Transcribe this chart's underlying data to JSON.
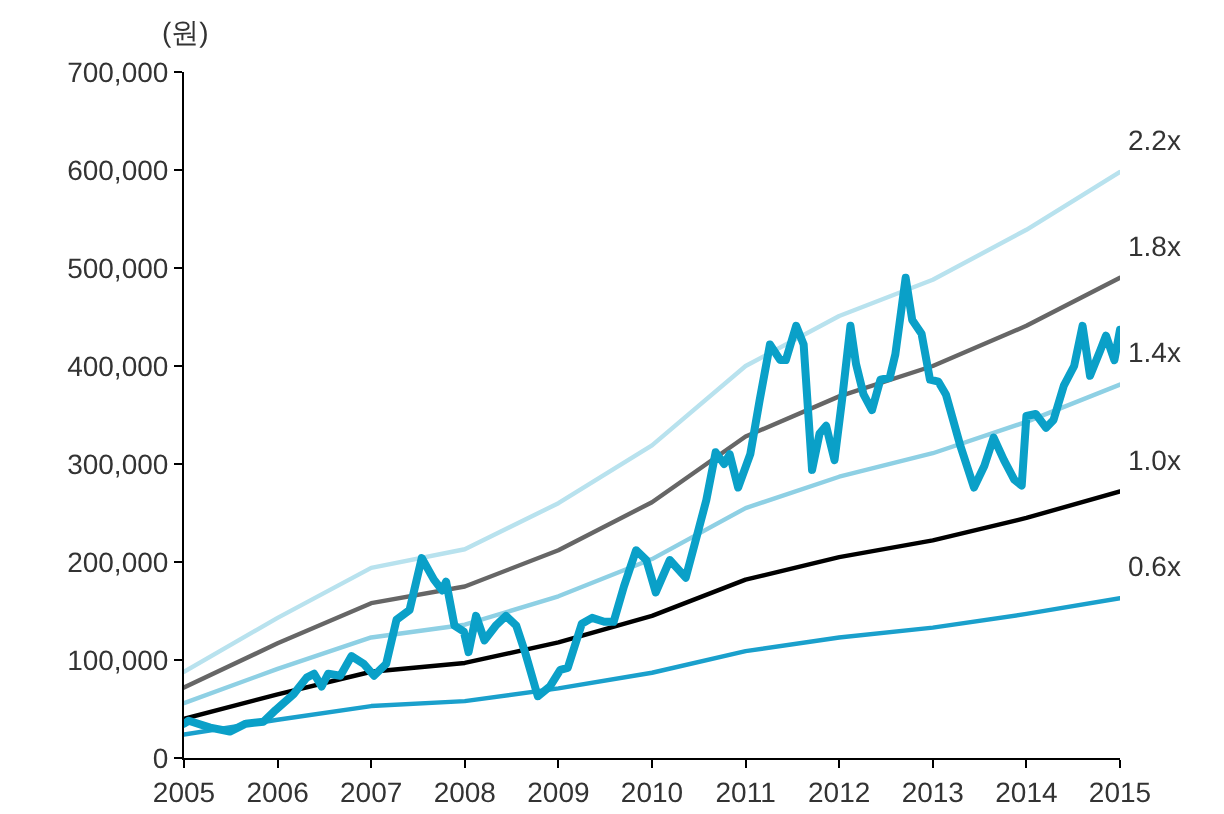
{
  "chart_data": {
    "type": "line",
    "ylabel": "(원)",
    "x": [
      2005,
      2006,
      2007,
      2008,
      2009,
      2010,
      2011,
      2012,
      2013,
      2014,
      2015
    ],
    "series": [
      {
        "name": "2.2x",
        "color": "#b8e2ee",
        "values": [
          88000,
          143000,
          194000,
          213000,
          260000,
          319000,
          400000,
          451000,
          488000,
          539000,
          598000
        ]
      },
      {
        "name": "1.8x",
        "color": "#666666",
        "values": [
          72000,
          117000,
          158000,
          175000,
          212000,
          261000,
          328000,
          369000,
          400000,
          441000,
          490000
        ]
      },
      {
        "name": "1.4x",
        "color": "#8ed0e4",
        "values": [
          56000,
          91000,
          123000,
          136000,
          165000,
          203000,
          255000,
          287000,
          311000,
          343000,
          381000
        ]
      },
      {
        "name": "1.0x",
        "color": "#000000",
        "values": [
          40000,
          65000,
          88000,
          97000,
          118000,
          145000,
          182000,
          205000,
          222000,
          245000,
          272000
        ]
      },
      {
        "name": "0.6x",
        "color": "#1aa0cc",
        "values": [
          24000,
          39000,
          53000,
          58000,
          71000,
          87000,
          109000,
          123000,
          133000,
          147000,
          163000
        ]
      },
      {
        "color": "#0aa0c8",
        "x": [
          2005.0,
          2005.05,
          2005.28,
          2005.49,
          2005.66,
          2005.85,
          2005.98,
          2006.17,
          2006.31,
          2006.39,
          2006.47,
          2006.54,
          2006.67,
          2006.79,
          2006.92,
          2007.03,
          2007.16,
          2007.27,
          2007.41,
          2007.54,
          2007.67,
          2007.76,
          2007.8,
          2007.89,
          2007.99,
          2008.04,
          2008.12,
          2008.21,
          2008.33,
          2008.44,
          2008.55,
          2008.65,
          2008.78,
          2008.91,
          2009.02,
          2009.1,
          2009.25,
          2009.36,
          2009.49,
          2009.59,
          2009.7,
          2009.83,
          2009.94,
          2010.04,
          2010.19,
          2010.36,
          2010.45,
          2010.58,
          2010.68,
          2010.77,
          2010.83,
          2010.92,
          2011.05,
          2011.15,
          2011.26,
          2011.37,
          2011.43,
          2011.54,
          2011.62,
          2011.71,
          2011.79,
          2011.86,
          2011.95,
          2012.03,
          2012.12,
          2012.18,
          2012.26,
          2012.35,
          2012.44,
          2012.54,
          2012.6,
          2012.71,
          2012.78,
          2012.88,
          2012.97,
          2013.06,
          2013.14,
          2013.29,
          2013.44,
          2013.55,
          2013.65,
          2013.76,
          2013.87,
          2013.95,
          2014.0,
          2014.1,
          2014.21,
          2014.29,
          2014.4,
          2014.51,
          2014.6,
          2014.68,
          2014.79,
          2014.85,
          2014.94,
          2015.0
        ],
        "values": [
          35000,
          38000,
          31000,
          27000,
          35000,
          37000,
          49000,
          65000,
          82000,
          86000,
          73000,
          86000,
          84000,
          104000,
          96000,
          84000,
          96000,
          141000,
          151000,
          204000,
          182000,
          171000,
          180000,
          135000,
          129000,
          108000,
          145000,
          120000,
          135000,
          145000,
          135000,
          106000,
          63000,
          73000,
          90000,
          92000,
          137000,
          143000,
          139000,
          139000,
          175000,
          212000,
          202000,
          169000,
          202000,
          184000,
          216000,
          263000,
          312000,
          300000,
          310000,
          276000,
          310000,
          365000,
          422000,
          406000,
          406000,
          441000,
          422000,
          294000,
          331000,
          339000,
          304000,
          365000,
          441000,
          402000,
          371000,
          355000,
          386000,
          388000,
          412000,
          490000,
          447000,
          433000,
          386000,
          384000,
          371000,
          320000,
          276000,
          298000,
          327000,
          304000,
          284000,
          278000,
          349000,
          351000,
          337000,
          345000,
          380000,
          400000,
          441000,
          390000,
          416000,
          431000,
          406000,
          437000
        ]
      }
    ],
    "xlim": [
      2005,
      2015
    ],
    "xticks": [
      2005,
      2006,
      2007,
      2008,
      2009,
      2010,
      2011,
      2012,
      2013,
      2014,
      2015
    ],
    "ylim": [
      0,
      700000
    ],
    "yticks": [
      {
        "value": 0,
        "label": "0"
      },
      {
        "value": 100000,
        "label": "100,000"
      },
      {
        "value": 200000,
        "label": "200,000"
      },
      {
        "value": 300000,
        "label": "300,000"
      },
      {
        "value": 400000,
        "label": "400,000"
      },
      {
        "value": 500000,
        "label": "500,000"
      },
      {
        "value": 600000,
        "label": "600,000"
      },
      {
        "value": 700000,
        "label": "700,000"
      }
    ],
    "grid": false,
    "legend": false
  }
}
